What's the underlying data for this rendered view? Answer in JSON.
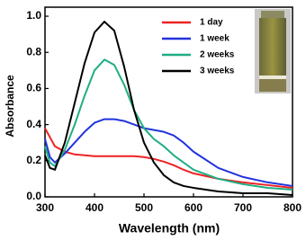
{
  "chart_data": {
    "type": "line",
    "xlabel": "Wavelength (nm)",
    "ylabel": "Absorbance",
    "x": [
      300,
      310,
      320,
      340,
      360,
      380,
      400,
      420,
      440,
      460,
      480,
      500,
      520,
      540,
      560,
      580,
      600,
      650,
      700,
      750,
      800
    ],
    "series": [
      {
        "name": "1 day",
        "color": "#ee2222",
        "values": [
          0.38,
          0.33,
          0.28,
          0.25,
          0.235,
          0.23,
          0.225,
          0.225,
          0.225,
          0.225,
          0.225,
          0.22,
          0.21,
          0.195,
          0.175,
          0.15,
          0.13,
          0.1,
          0.08,
          0.065,
          0.05
        ]
      },
      {
        "name": "1 week",
        "color": "#2233dd",
        "values": [
          0.32,
          0.22,
          0.19,
          0.24,
          0.3,
          0.36,
          0.41,
          0.43,
          0.43,
          0.42,
          0.4,
          0.38,
          0.37,
          0.36,
          0.34,
          0.3,
          0.25,
          0.16,
          0.11,
          0.08,
          0.06
        ]
      },
      {
        "name": "2 weeks",
        "color": "#1fae84",
        "values": [
          0.28,
          0.19,
          0.17,
          0.26,
          0.4,
          0.56,
          0.7,
          0.76,
          0.73,
          0.62,
          0.48,
          0.38,
          0.32,
          0.28,
          0.23,
          0.19,
          0.15,
          0.1,
          0.07,
          0.05,
          0.04
        ]
      },
      {
        "name": "3 weeks",
        "color": "#000000",
        "values": [
          0.23,
          0.16,
          0.15,
          0.3,
          0.52,
          0.74,
          0.91,
          0.97,
          0.92,
          0.72,
          0.48,
          0.3,
          0.19,
          0.12,
          0.08,
          0.06,
          0.05,
          0.03,
          0.02,
          0.02,
          0.01
        ]
      }
    ],
    "xlim": [
      300,
      800
    ],
    "xticks": [
      300,
      400,
      500,
      600,
      700,
      800
    ],
    "ylim": [
      0,
      1.05
    ],
    "yticks": [
      {
        "value": 0,
        "label": "0.0"
      },
      0.2,
      0.4,
      0.6,
      0.8,
      {
        "value": 1,
        "label": "1.0"
      }
    ],
    "legend": "upper right"
  }
}
